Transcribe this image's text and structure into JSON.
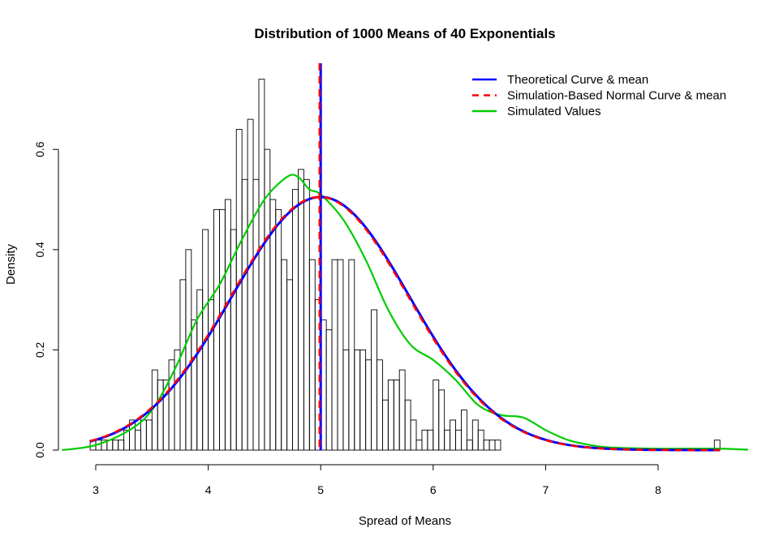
{
  "chart_data": {
    "type": "histogram",
    "title": "Distribution of 1000 Means of 40 Exponentials",
    "xlabel": "Spread of Means",
    "ylabel": "Density",
    "x_ticks": [
      "3",
      "4",
      "5",
      "6",
      "7",
      "8"
    ],
    "y_ticks": [
      "0.0",
      "0.2",
      "0.4",
      "0.6"
    ],
    "xlim": [
      2.75,
      8.8
    ],
    "ylim": [
      0,
      0.77
    ],
    "grid": false,
    "legend_placement": "top-right",
    "bin_width": 0.05,
    "bin_start": 2.95,
    "bars": [
      0.02,
      0.02,
      0.02,
      0.02,
      0.02,
      0.02,
      0.04,
      0.06,
      0.04,
      0.06,
      0.06,
      0.16,
      0.14,
      0.14,
      0.18,
      0.2,
      0.34,
      0.4,
      0.26,
      0.32,
      0.44,
      0.3,
      0.48,
      0.48,
      0.5,
      0.44,
      0.64,
      0.54,
      0.66,
      0.54,
      0.74,
      0.6,
      0.5,
      0.48,
      0.38,
      0.34,
      0.52,
      0.56,
      0.54,
      0.38,
      0.3,
      0.26,
      0.24,
      0.38,
      0.38,
      0.2,
      0.38,
      0.2,
      0.2,
      0.18,
      0.28,
      0.18,
      0.1,
      0.14,
      0.14,
      0.16,
      0.1,
      0.06,
      0.02,
      0.04,
      0.04,
      0.14,
      0.12,
      0.04,
      0.06,
      0.04,
      0.08,
      0.02,
      0.06,
      0.04,
      0.02,
      0.02,
      0.02
    ],
    "outlier_bars": [
      {
        "x": 8.5,
        "value": 0.02
      }
    ],
    "theoretical_mean": 5.0,
    "theoretical_sd": 0.79,
    "sim_mean": 4.99,
    "sim_sd": 0.79,
    "series": [
      {
        "name": "Theoretical Curve & mean",
        "color": "#0000ff",
        "style": "solid"
      },
      {
        "name": "Simulation-Based Normal Curve & mean",
        "color": "#ff0000",
        "style": "dashed"
      },
      {
        "name": "Simulated Values",
        "color": "#00cc00",
        "style": "solid",
        "x": [
          2.7,
          3.0,
          3.3,
          3.5,
          3.7,
          3.9,
          4.1,
          4.3,
          4.5,
          4.7,
          4.8,
          4.9,
          5.0,
          5.2,
          5.4,
          5.6,
          5.8,
          6.0,
          6.2,
          6.4,
          6.6,
          6.8,
          7.0,
          7.2,
          7.4,
          7.6,
          8.0,
          8.5,
          8.8
        ],
        "values": [
          0.0,
          0.01,
          0.04,
          0.08,
          0.16,
          0.26,
          0.33,
          0.42,
          0.5,
          0.545,
          0.545,
          0.52,
          0.51,
          0.46,
          0.38,
          0.28,
          0.21,
          0.18,
          0.14,
          0.09,
          0.07,
          0.065,
          0.04,
          0.02,
          0.01,
          0.005,
          0.003,
          0.003,
          0.001
        ]
      }
    ]
  }
}
